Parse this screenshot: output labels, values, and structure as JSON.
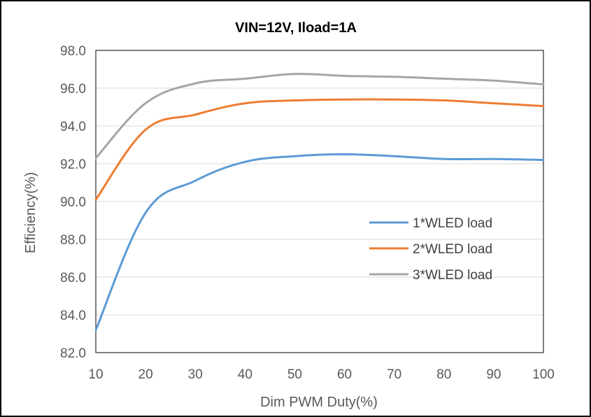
{
  "chart_data": {
    "type": "line",
    "title": "VIN=12V, Iload=1A",
    "xlabel": "Dim PWM Duty(%)",
    "ylabel": "Efficiency(%)",
    "xlim": [
      10,
      100
    ],
    "ylim": [
      82.0,
      98.0
    ],
    "xticks": [
      10,
      20,
      30,
      40,
      50,
      60,
      70,
      80,
      90,
      100
    ],
    "yticks": [
      "82.0",
      "84.0",
      "86.0",
      "88.0",
      "90.0",
      "92.0",
      "94.0",
      "96.0",
      "98.0"
    ],
    "legend_position": "center-right",
    "grid": "horizontal",
    "x": [
      10,
      20,
      30,
      40,
      50,
      60,
      70,
      80,
      90,
      100
    ],
    "series": [
      {
        "name": "1*WLED load",
        "color": "#5B9BD5",
        "values": [
          83.2,
          89.4,
          91.1,
          92.1,
          92.4,
          92.5,
          92.4,
          92.25,
          92.25,
          92.2
        ]
      },
      {
        "name": "2*WLED load",
        "color": "#ED7D31",
        "values": [
          90.1,
          93.8,
          94.6,
          95.2,
          95.35,
          95.4,
          95.4,
          95.35,
          95.2,
          95.05
        ]
      },
      {
        "name": "3*WLED load",
        "color": "#A5A5A5",
        "values": [
          92.3,
          95.2,
          96.25,
          96.5,
          96.75,
          96.65,
          96.6,
          96.5,
          96.4,
          96.2
        ]
      }
    ]
  }
}
